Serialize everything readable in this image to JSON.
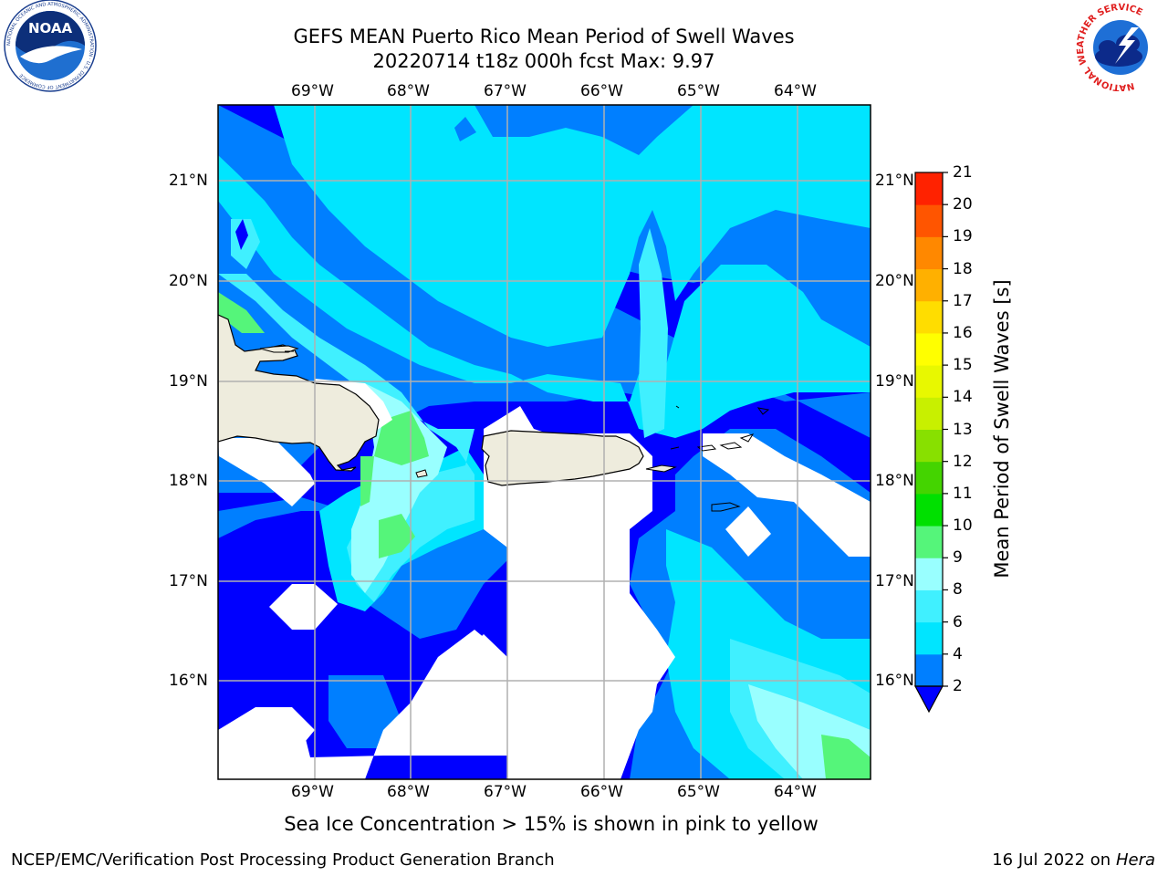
{
  "header": {
    "title_line1": "GEFS MEAN Puerto Rico Mean Period of Swell Waves",
    "title_line2": "20220714 t18z 000h fcst   Max: 9.97"
  },
  "map": {
    "lon_labels": [
      "69°W",
      "68°W",
      "67°W",
      "66°W",
      "65°W",
      "64°W"
    ],
    "lat_labels": [
      "21°N",
      "20°N",
      "19°N",
      "18°N",
      "17°N",
      "16°N"
    ],
    "colors": {
      "land": "#eeecdd",
      "no_data": "#ffffff",
      "grid": "#b0b0b0"
    }
  },
  "colorbar": {
    "label": "Mean Period of Swell Waves [s]",
    "levels": [
      "2",
      "4",
      "6",
      "8",
      "9",
      "10",
      "11",
      "12",
      "13",
      "14",
      "15",
      "16",
      "17",
      "18",
      "19",
      "20",
      "21"
    ],
    "colors": [
      "#0000ff",
      "#007fff",
      "#00e5ff",
      "#40f0ff",
      "#99ffff",
      "#55f57a",
      "#00e000",
      "#44d400",
      "#88e000",
      "#c8f000",
      "#e8f800",
      "#ffff00",
      "#ffdd00",
      "#ffb000",
      "#ff8800",
      "#ff5500",
      "#ff2200",
      "#ff0000"
    ]
  },
  "note": "Sea Ice Concentration > 15% is shown in pink to yellow",
  "footer": {
    "left": "NCEP/EMC/Verification Post Processing Product Generation Branch",
    "date": "16 Jul 2022 on ",
    "machine": "Hera"
  },
  "logos": {
    "noaa_text": "NOAA",
    "noaa_ring": "NATIONAL OCEANIC AND ATMOSPHERIC ADMINISTRATION · U.S. DEPARTMENT OF COMMERCE",
    "nws_ring": "NATIONAL WEATHER SERVICE"
  }
}
